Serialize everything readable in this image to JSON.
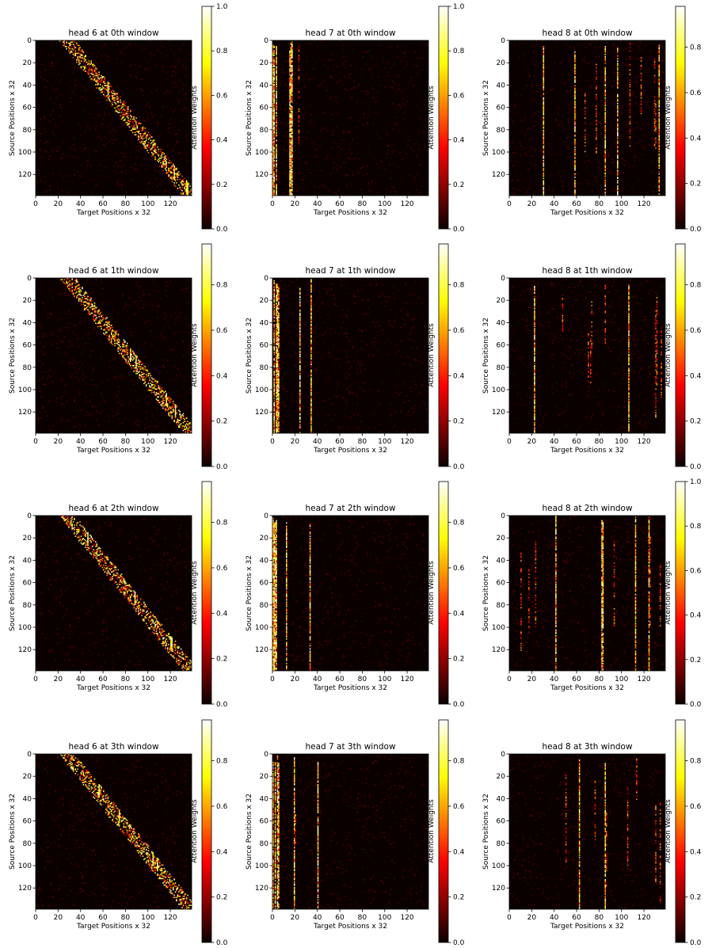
{
  "chart_data": [
    {
      "type": "heatmap",
      "title": "head 6 at 0th window",
      "xlabel": "Target Positions x 32",
      "ylabel": "Source Positions x 32",
      "colorbar_label": "Attention Weights",
      "colormap": "hot",
      "xlim": [
        0,
        139
      ],
      "ylim": [
        139,
        0
      ],
      "xticks": [
        0,
        20,
        40,
        60,
        80,
        100,
        120
      ],
      "yticks": [
        0,
        20,
        40,
        60,
        80,
        100,
        120
      ],
      "colorbar_ticks": [
        "0.0",
        "0.2",
        "0.4",
        "0.6",
        "0.8",
        "1.0"
      ],
      "colorbar_max": 1.0,
      "pattern": "diagonal"
    },
    {
      "type": "heatmap",
      "title": "head 7 at 0th window",
      "xlabel": "Target Positions x 32",
      "ylabel": "Source Positions x 32",
      "colorbar_label": "Attention Weights",
      "colormap": "hot",
      "xlim": [
        0,
        139
      ],
      "ylim": [
        139,
        0
      ],
      "xticks": [
        0,
        20,
        40,
        60,
        80,
        100,
        120
      ],
      "yticks": [
        0,
        20,
        40,
        60,
        80,
        100,
        120
      ],
      "colorbar_ticks": [
        "0.0",
        "0.2",
        "0.4",
        "0.6",
        "0.8",
        "1.0"
      ],
      "colorbar_max": 1.0,
      "pattern": "columns",
      "hot_columns": [
        0,
        1,
        3,
        15,
        16,
        17,
        23
      ]
    },
    {
      "type": "heatmap",
      "title": "head 8 at 0th window",
      "xlabel": "Target Positions x 32",
      "ylabel": "Source Positions x 32",
      "colorbar_label": "Attention Weights",
      "colormap": "hot",
      "xlim": [
        0,
        139
      ],
      "ylim": [
        139,
        0
      ],
      "xticks": [
        0,
        20,
        40,
        60,
        80,
        100,
        120
      ],
      "yticks": [
        0,
        20,
        40,
        60,
        80,
        100,
        120
      ],
      "colorbar_ticks": [
        "0.0",
        "0.2",
        "0.4",
        "0.6",
        "0.8"
      ],
      "colorbar_max": 0.98,
      "pattern": "sparse-columns",
      "hot_columns": [
        30,
        58,
        67,
        77,
        85,
        96,
        107,
        117,
        129,
        130,
        133
      ]
    },
    {
      "type": "heatmap",
      "title": "head 6 at 1th window",
      "xlabel": "Target Positions x 32",
      "ylabel": "Source Positions x 32",
      "colorbar_label": "Attention Weights",
      "colormap": "hot",
      "xlim": [
        0,
        139
      ],
      "ylim": [
        139,
        0
      ],
      "xticks": [
        0,
        20,
        40,
        60,
        80,
        100,
        120
      ],
      "yticks": [
        0,
        20,
        40,
        60,
        80,
        100,
        120
      ],
      "colorbar_ticks": [
        "0.0",
        "0.2",
        "0.4",
        "0.6",
        "0.8"
      ],
      "colorbar_max": 0.98,
      "pattern": "diagonal"
    },
    {
      "type": "heatmap",
      "title": "head 7 at 1th window",
      "xlabel": "Target Positions x 32",
      "ylabel": "Source Positions x 32",
      "colorbar_label": "Attention Weights",
      "colormap": "hot",
      "xlim": [
        0,
        139
      ],
      "ylim": [
        139,
        0
      ],
      "xticks": [
        0,
        20,
        40,
        60,
        80,
        100,
        120
      ],
      "yticks": [
        0,
        20,
        40,
        60,
        80,
        100,
        120
      ],
      "colorbar_ticks": [
        "0.0",
        "0.2",
        "0.4",
        "0.6",
        "0.8"
      ],
      "colorbar_max": 0.98,
      "pattern": "columns",
      "hot_columns": [
        1,
        3,
        4,
        5,
        24,
        34
      ]
    },
    {
      "type": "heatmap",
      "title": "head 8 at 1th window",
      "xlabel": "Target Positions x 32",
      "ylabel": "Source Positions x 32",
      "colorbar_label": "Attention Weights",
      "colormap": "hot",
      "xlim": [
        0,
        139
      ],
      "ylim": [
        139,
        0
      ],
      "xticks": [
        0,
        20,
        40,
        60,
        80,
        100,
        120
      ],
      "yticks": [
        0,
        20,
        40,
        60,
        80,
        100,
        120
      ],
      "colorbar_ticks": [
        "0.0",
        "0.2",
        "0.4",
        "0.6",
        "0.8"
      ],
      "colorbar_max": 0.98,
      "pattern": "sparse-columns",
      "hot_columns": [
        22,
        47,
        70,
        72,
        73,
        85,
        106,
        130,
        131,
        135
      ]
    },
    {
      "type": "heatmap",
      "title": "head 6 at 2th window",
      "xlabel": "Target Positions x 32",
      "ylabel": "Source Positions x 32",
      "colorbar_label": "Attention Weights",
      "colormap": "hot",
      "xlim": [
        0,
        139
      ],
      "ylim": [
        139,
        0
      ],
      "xticks": [
        0,
        20,
        40,
        60,
        80,
        100,
        120
      ],
      "yticks": [
        0,
        20,
        40,
        60,
        80,
        100,
        120
      ],
      "colorbar_ticks": [
        "0.0",
        "0.2",
        "0.4",
        "0.6",
        "0.8"
      ],
      "colorbar_max": 0.98,
      "pattern": "diagonal"
    },
    {
      "type": "heatmap",
      "title": "head 7 at 2th window",
      "xlabel": "Target Positions x 32",
      "ylabel": "Source Positions x 32",
      "colorbar_label": "Attention Weights",
      "colormap": "hot",
      "xlim": [
        0,
        139
      ],
      "ylim": [
        139,
        0
      ],
      "xticks": [
        0,
        20,
        40,
        60,
        80,
        100,
        120
      ],
      "yticks": [
        0,
        20,
        40,
        60,
        80,
        100,
        120
      ],
      "colorbar_ticks": [
        "0.0",
        "0.2",
        "0.4",
        "0.6",
        "0.8"
      ],
      "colorbar_max": 0.98,
      "pattern": "columns",
      "hot_columns": [
        0,
        1,
        2,
        3,
        12,
        33
      ]
    },
    {
      "type": "heatmap",
      "title": "head 8 at 2th window",
      "xlabel": "Target Positions x 32",
      "ylabel": "Source Positions x 32",
      "colorbar_label": "Attention Weights",
      "colormap": "hot",
      "xlim": [
        0,
        139
      ],
      "ylim": [
        139,
        0
      ],
      "xticks": [
        0,
        20,
        40,
        60,
        80,
        100,
        120
      ],
      "yticks": [
        0,
        20,
        40,
        60,
        80,
        100,
        120
      ],
      "colorbar_ticks": [
        "0.0",
        "0.2",
        "0.4",
        "0.6",
        "0.8",
        "1.0"
      ],
      "colorbar_max": 1.0,
      "pattern": "sparse-columns",
      "hot_columns": [
        10,
        17,
        23,
        41,
        82,
        83,
        93,
        112,
        124,
        125,
        134
      ]
    },
    {
      "type": "heatmap",
      "title": "head 6 at 3th window",
      "xlabel": "Target Positions x 32",
      "ylabel": "Source Positions x 32",
      "colorbar_label": "Attention Weights",
      "colormap": "hot",
      "xlim": [
        0,
        139
      ],
      "ylim": [
        139,
        0
      ],
      "xticks": [
        0,
        20,
        40,
        60,
        80,
        100,
        120
      ],
      "yticks": [
        0,
        20,
        40,
        60,
        80,
        100,
        120
      ],
      "colorbar_ticks": [
        "0.0",
        "0.2",
        "0.4",
        "0.6",
        "0.8"
      ],
      "colorbar_max": 0.98,
      "pattern": "diagonal"
    },
    {
      "type": "heatmap",
      "title": "head 7 at 3th window",
      "xlabel": "Target Positions x 32",
      "ylabel": "Source Positions x 32",
      "colorbar_label": "Attention Weights",
      "colormap": "hot",
      "xlim": [
        0,
        139
      ],
      "ylim": [
        139,
        0
      ],
      "xticks": [
        0,
        20,
        40,
        60,
        80,
        100,
        120
      ],
      "yticks": [
        0,
        20,
        40,
        60,
        80,
        100,
        120
      ],
      "colorbar_ticks": [
        "0.0",
        "0.2",
        "0.4",
        "0.6",
        "0.8"
      ],
      "colorbar_max": 0.98,
      "pattern": "columns",
      "hot_columns": [
        0,
        2,
        4,
        5,
        19,
        20,
        40
      ]
    },
    {
      "type": "heatmap",
      "title": "head 8 at 3th window",
      "xlabel": "Target Positions x 32",
      "ylabel": "Source Positions x 32",
      "colorbar_label": "Attention Weights",
      "colormap": "hot",
      "xlim": [
        0,
        139
      ],
      "ylim": [
        139,
        0
      ],
      "xticks": [
        0,
        20,
        40,
        60,
        80,
        100,
        120
      ],
      "yticks": [
        0,
        20,
        40,
        60,
        80,
        100,
        120
      ],
      "colorbar_ticks": [
        "0.0",
        "0.2",
        "0.4",
        "0.6",
        "0.8"
      ],
      "colorbar_max": 0.98,
      "pattern": "sparse-columns",
      "hot_columns": [
        50,
        62,
        76,
        85,
        86,
        105,
        113,
        130,
        134
      ]
    }
  ]
}
